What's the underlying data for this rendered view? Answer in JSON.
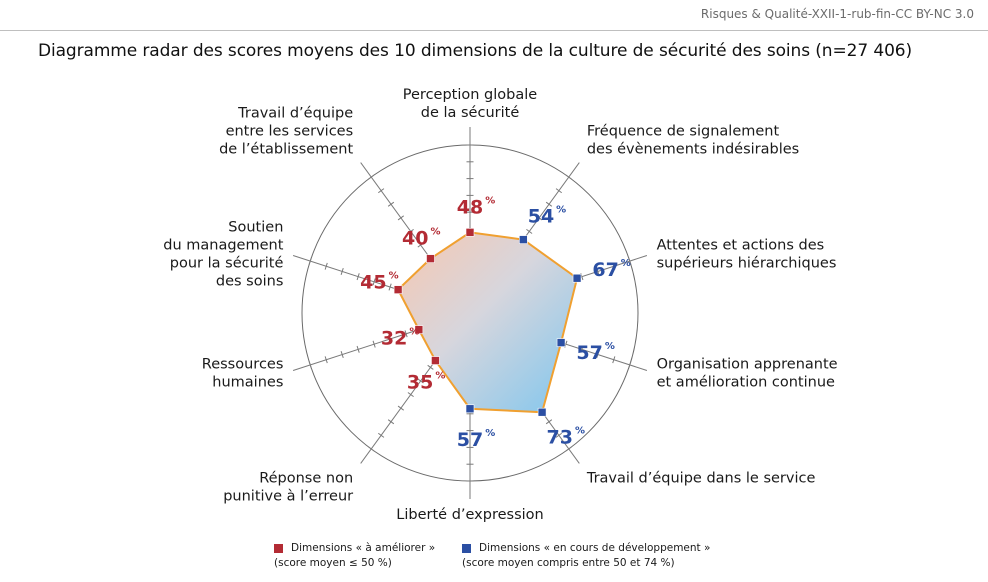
{
  "source": "Risques & Qualité-XXII-1-rub-fin-CC BY-NC 3.0",
  "chart_data": {
    "type": "radar",
    "title": "Diagramme radar des scores moyens des 10 dimensions de la culture de sécurité des soins (n=27 406)",
    "range": [
      0,
      100
    ],
    "unit": "%",
    "colors": {
      "improve": "#b32b34",
      "developing": "#2b4fa3",
      "outline": "#f0a030"
    },
    "dimensions": [
      {
        "label": [
          "Perception globale",
          "de la sécurité"
        ],
        "value": 48,
        "category": "improve"
      },
      {
        "label": [
          "Fréquence de signalement",
          "des évènements indésirables"
        ],
        "value": 54,
        "category": "developing"
      },
      {
        "label": [
          "Attentes et actions des",
          "supérieurs hiérarchiques"
        ],
        "value": 67,
        "category": "developing"
      },
      {
        "label": [
          "Organisation apprenante",
          "et amélioration continue"
        ],
        "value": 57,
        "category": "developing"
      },
      {
        "label": [
          "Travail d’équipe dans le service"
        ],
        "value": 73,
        "category": "developing"
      },
      {
        "label": [
          "Liberté d’expression"
        ],
        "value": 57,
        "category": "developing"
      },
      {
        "label": [
          "Réponse non",
          "punitive à l’erreur"
        ],
        "value": 35,
        "category": "improve"
      },
      {
        "label": [
          "Ressources",
          "humaines"
        ],
        "value": 32,
        "category": "improve"
      },
      {
        "label": [
          "Soutien",
          "du management",
          "pour la sécurité",
          "des soins"
        ],
        "value": 45,
        "category": "improve"
      },
      {
        "label": [
          "Travail d’équipe",
          "entre les services",
          "de l’établissement"
        ],
        "value": 40,
        "category": "improve"
      }
    ]
  },
  "legend": [
    {
      "category": "improve",
      "label": "Dimensions « à améliorer »",
      "sub": "(score moyen ≤ 50 %)"
    },
    {
      "category": "developing",
      "label": "Dimensions « en cours de développement »",
      "sub": "(score moyen compris entre 50 et 74 %)"
    }
  ]
}
